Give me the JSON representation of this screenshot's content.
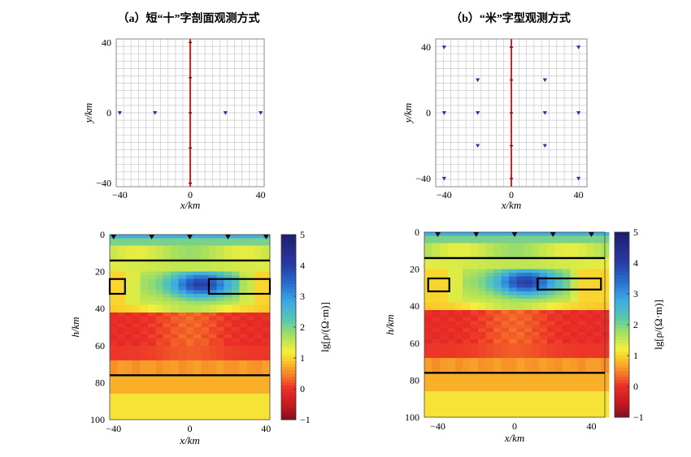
{
  "chart_data": [
    {
      "panel": "a-top",
      "type": "scatter",
      "title": "（a）短“十”字剖面观测方式",
      "xlabel": "x/km",
      "ylabel": "y/km",
      "xlim": [
        -42,
        42
      ],
      "ylim": [
        -42,
        42
      ],
      "xticks": [
        -40,
        0,
        40
      ],
      "yticks": [
        -40,
        0,
        40
      ],
      "grid": true,
      "stations": {
        "color": "#2b3a8f",
        "points": [
          [
            -40,
            0
          ],
          [
            -20,
            0
          ],
          [
            20,
            0
          ],
          [
            40,
            0
          ]
        ]
      },
      "profile_line": {
        "color": "#e02020",
        "x": 0,
        "ticks_y": [
          40,
          20,
          0,
          -20,
          -40
        ]
      }
    },
    {
      "panel": "b-top",
      "type": "scatter",
      "title": "（b）“米”字型观测方式",
      "xlabel": "x/km",
      "ylabel": "y/km",
      "xlim": [
        -45,
        45
      ],
      "ylim": [
        -45,
        45
      ],
      "xticks": [
        -40,
        0,
        40
      ],
      "yticks": [
        -40,
        0,
        40
      ],
      "grid": true,
      "stations": {
        "color": "#2b3a8f",
        "points": [
          [
            -40,
            40
          ],
          [
            40,
            40
          ],
          [
            -20,
            20
          ],
          [
            20,
            20
          ],
          [
            -40,
            0
          ],
          [
            -20,
            0
          ],
          [
            20,
            0
          ],
          [
            40,
            0
          ],
          [
            -20,
            -20
          ],
          [
            20,
            -20
          ],
          [
            -40,
            -40
          ],
          [
            40,
            -40
          ]
        ]
      },
      "profile_line": {
        "color": "#e02020",
        "x": 0,
        "ticks_y": [
          40,
          20,
          0,
          -20,
          -40
        ]
      }
    },
    {
      "panel": "a-bottom",
      "type": "heatmap",
      "xlabel": "x/km",
      "ylabel": "h/km",
      "xlim": [
        -42,
        42
      ],
      "ylim": [
        0,
        100
      ],
      "xticks": [
        -40,
        0,
        40
      ],
      "yticks": [
        0,
        20,
        40,
        60,
        80,
        100
      ],
      "surface_stations_x": [
        -40,
        -20,
        0,
        20,
        40
      ],
      "interfaces_depth": [
        14,
        76
      ],
      "anomaly_boxes": [
        {
          "x0": -42,
          "x1": -34,
          "z0": 24,
          "z1": 32
        },
        {
          "x0": 10,
          "x1": 42,
          "z0": 24,
          "z1": 32
        }
      ],
      "colorbar": {
        "label": "lg[ρ/(Ω·m)]",
        "min": -1,
        "max": 5,
        "ticks": [
          5,
          4,
          3,
          2,
          1,
          0,
          -1
        ]
      }
    },
    {
      "panel": "b-bottom",
      "type": "heatmap",
      "xlabel": "x/km",
      "ylabel": "h/km",
      "xlim": [
        -47,
        47
      ],
      "ylim": [
        0,
        100
      ],
      "xticks": [
        -40,
        0,
        40
      ],
      "yticks": [
        0,
        20,
        40,
        60,
        80,
        100
      ],
      "surface_stations_x": [
        -40,
        -20,
        0,
        20,
        40
      ],
      "interfaces_depth": [
        14,
        76
      ],
      "anomaly_boxes": [
        {
          "x0": -45,
          "x1": -34,
          "z0": 25,
          "z1": 32
        },
        {
          "x0": 12,
          "x1": 45,
          "z0": 25,
          "z1": 31
        }
      ],
      "colorbar": {
        "label": "lg[ρ/(Ω·m)]",
        "min": -1,
        "max": 5,
        "ticks": [
          5,
          4,
          3,
          2,
          1,
          0,
          -1
        ]
      }
    }
  ]
}
